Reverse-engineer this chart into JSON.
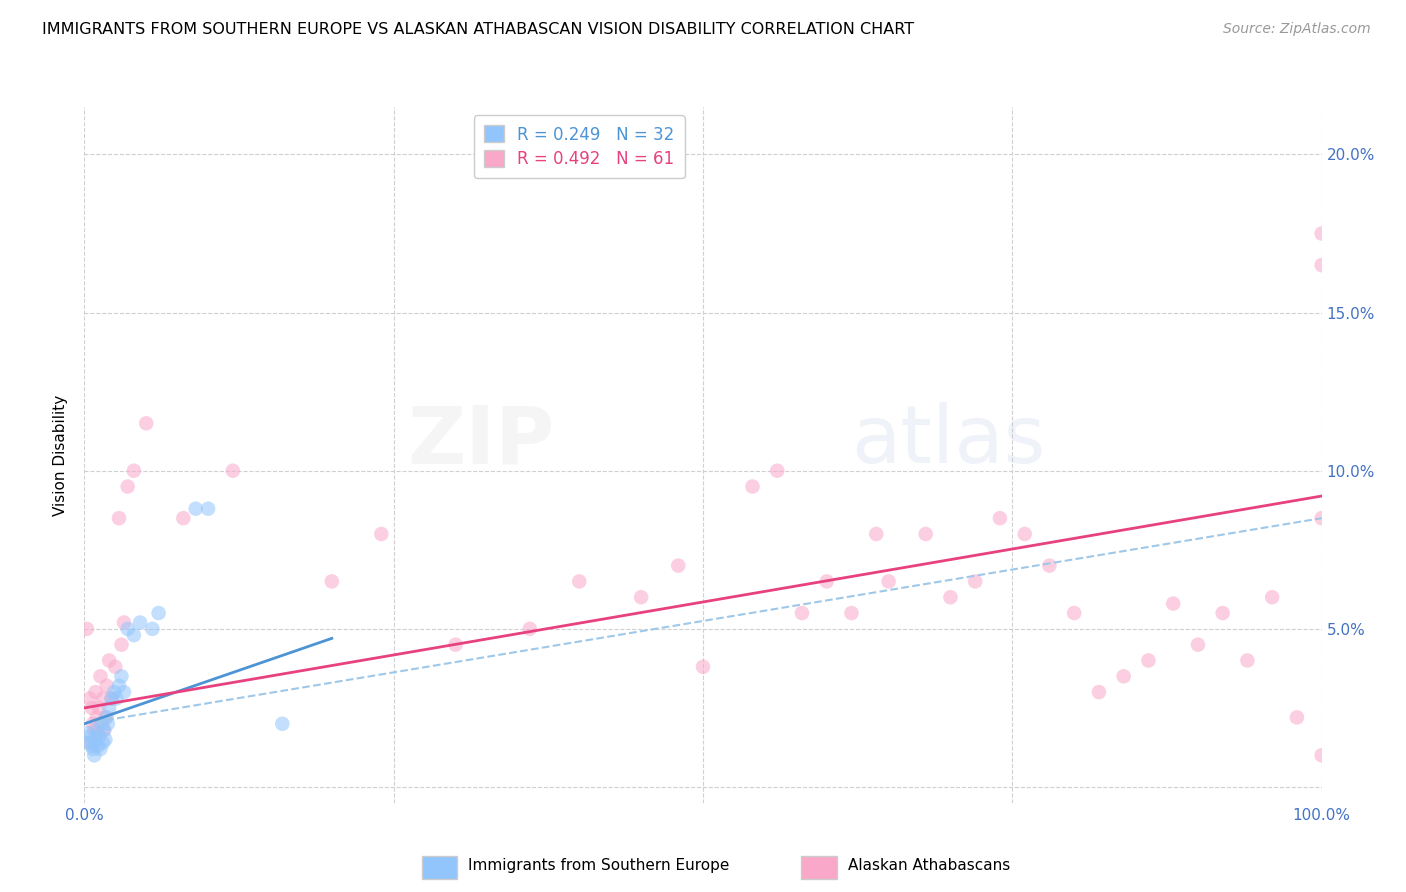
{
  "title": "IMMIGRANTS FROM SOUTHERN EUROPE VS ALASKAN ATHABASCAN VISION DISABILITY CORRELATION CHART",
  "source": "Source: ZipAtlas.com",
  "ylabel": "Vision Disability",
  "y_ticks": [
    0.0,
    0.05,
    0.1,
    0.15,
    0.2
  ],
  "y_tick_labels": [
    "",
    "5.0%",
    "10.0%",
    "15.0%",
    "20.0%"
  ],
  "x_range": [
    0.0,
    1.0
  ],
  "y_range": [
    -0.005,
    0.215
  ],
  "background_color": "#ffffff",
  "legend_series1_label": "R = 0.249   N = 32",
  "legend_series2_label": "R = 0.492   N = 61",
  "series1_color": "#92c5fc",
  "series2_color": "#f9a8c9",
  "line_color_blue": "#4d94d5",
  "line_color_pink": "#e8417f",
  "dash_color": "#9fc8e8",
  "blue_scatter_x": [
    0.003,
    0.004,
    0.005,
    0.006,
    0.007,
    0.008,
    0.009,
    0.01,
    0.011,
    0.012,
    0.013,
    0.014,
    0.015,
    0.016,
    0.017,
    0.018,
    0.019,
    0.02,
    0.022,
    0.024,
    0.026,
    0.028,
    0.03,
    0.032,
    0.035,
    0.04,
    0.045,
    0.055,
    0.06,
    0.09,
    0.1,
    0.16
  ],
  "blue_scatter_y": [
    0.017,
    0.014,
    0.016,
    0.013,
    0.012,
    0.01,
    0.015,
    0.018,
    0.013,
    0.016,
    0.012,
    0.02,
    0.014,
    0.018,
    0.015,
    0.022,
    0.02,
    0.025,
    0.028,
    0.03,
    0.028,
    0.032,
    0.035,
    0.03,
    0.05,
    0.048,
    0.052,
    0.05,
    0.055,
    0.088,
    0.088,
    0.02
  ],
  "pink_scatter_x": [
    0.002,
    0.004,
    0.005,
    0.006,
    0.007,
    0.008,
    0.009,
    0.01,
    0.011,
    0.012,
    0.013,
    0.015,
    0.016,
    0.017,
    0.018,
    0.02,
    0.022,
    0.025,
    0.028,
    0.03,
    0.032,
    0.035,
    0.04,
    0.05,
    0.08,
    0.12,
    0.2,
    0.24,
    0.3,
    0.36,
    0.4,
    0.45,
    0.48,
    0.5,
    0.54,
    0.56,
    0.58,
    0.6,
    0.62,
    0.64,
    0.65,
    0.68,
    0.7,
    0.72,
    0.74,
    0.76,
    0.78,
    0.8,
    0.82,
    0.84,
    0.86,
    0.88,
    0.9,
    0.92,
    0.94,
    0.96,
    0.98,
    1.0,
    1.0,
    1.0,
    1.0
  ],
  "pink_scatter_y": [
    0.05,
    0.028,
    0.014,
    0.025,
    0.02,
    0.018,
    0.03,
    0.022,
    0.017,
    0.025,
    0.035,
    0.028,
    0.018,
    0.022,
    0.032,
    0.04,
    0.028,
    0.038,
    0.085,
    0.045,
    0.052,
    0.095,
    0.1,
    0.115,
    0.085,
    0.1,
    0.065,
    0.08,
    0.045,
    0.05,
    0.065,
    0.06,
    0.07,
    0.038,
    0.095,
    0.1,
    0.055,
    0.065,
    0.055,
    0.08,
    0.065,
    0.08,
    0.06,
    0.065,
    0.085,
    0.08,
    0.07,
    0.055,
    0.03,
    0.035,
    0.04,
    0.058,
    0.045,
    0.055,
    0.04,
    0.06,
    0.022,
    0.01,
    0.085,
    0.165,
    0.175
  ],
  "blue_solid_line_x": [
    0.0,
    0.2
  ],
  "blue_solid_line_y": [
    0.02,
    0.047
  ],
  "pink_solid_line_x": [
    0.0,
    1.0
  ],
  "pink_solid_line_y": [
    0.025,
    0.092
  ],
  "blue_dash_line_x": [
    0.0,
    1.0
  ],
  "blue_dash_line_y": [
    0.02,
    0.085
  ],
  "scatter_size": 110,
  "scatter_alpha": 0.55,
  "title_fontsize": 11.5,
  "axis_label_fontsize": 11,
  "tick_fontsize": 11,
  "source_fontsize": 10,
  "legend_fontsize": 12,
  "watermark_text": "ZIPatlas",
  "watermark_fontsize": 58,
  "watermark_alpha": 0.18,
  "bottom_label1": "Immigrants from Southern Europe",
  "bottom_label2": "Alaskan Athabascans"
}
